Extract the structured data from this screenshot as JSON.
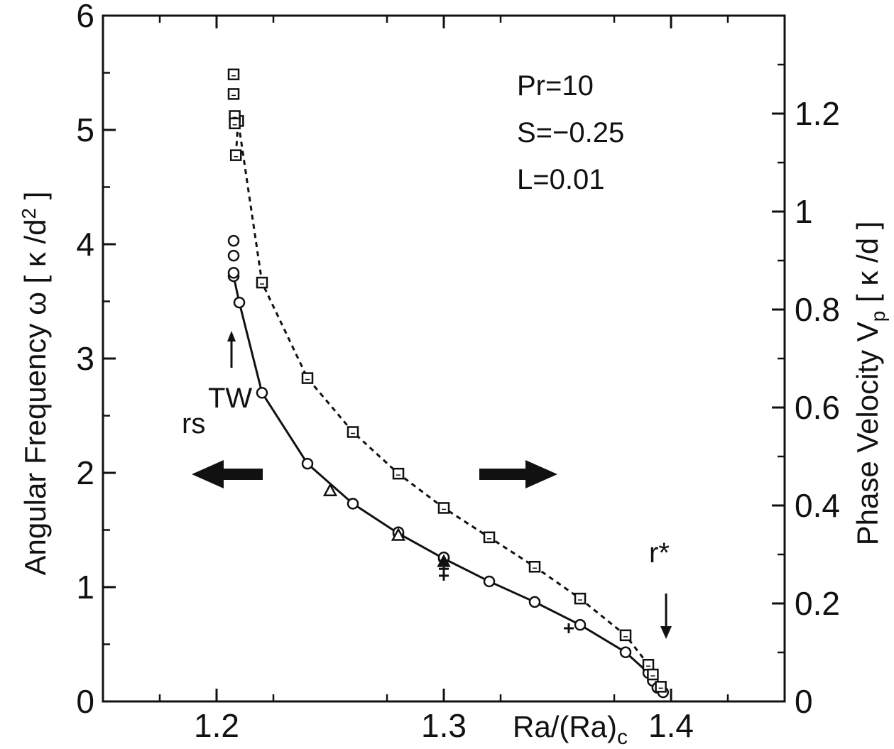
{
  "chart_data": {
    "type": "line",
    "xlabel": "Ra/(Ra)c",
    "ylabel": "Angular Frequency ω [ κ/d² ]",
    "ylabel_right": "Phase Velocity Vp [ κ/d ]",
    "xlim": [
      1.15,
      1.45
    ],
    "ylim": [
      0,
      6
    ],
    "ylim_right": [
      0,
      1.4
    ],
    "x_ticks": [
      "1.2",
      "1.3",
      "1.4"
    ],
    "y_ticks": [
      "0",
      "1",
      "2",
      "3",
      "4",
      "5",
      "6"
    ],
    "y_right_ticks": [
      "0",
      "0.2",
      "0.4",
      "0.6",
      "0.8",
      "1",
      "1.2"
    ],
    "grid": false,
    "annotations": {
      "params": [
        "Pr=10",
        "S=−0.25",
        "L=0.01"
      ],
      "rs_label": "rs",
      "rs_superscript": "TW",
      "rstar_label": "r*"
    },
    "series": [
      {
        "axis": "left",
        "style": "solid",
        "marker": "circle",
        "x": [
          1.2075,
          1.21,
          1.22,
          1.24,
          1.26,
          1.28,
          1.3,
          1.32,
          1.34,
          1.36,
          1.38,
          1.39,
          1.392,
          1.394,
          1.3965
        ],
        "y": [
          3.72,
          3.49,
          2.7,
          2.08,
          1.73,
          1.47,
          1.25,
          1.05,
          0.87,
          0.67,
          0.43,
          0.25,
          0.18,
          0.12,
          0.08
        ]
      },
      {
        "axis": "left",
        "style": "points",
        "marker": "circle",
        "x": [
          1.2075,
          1.2075,
          1.2075,
          1.28,
          1.3
        ],
        "y": [
          4.03,
          3.9,
          3.75,
          1.48,
          1.26
        ]
      },
      {
        "axis": "right",
        "style": "dashed",
        "marker": "square",
        "x": [
          1.2085,
          1.2095,
          1.22,
          1.24,
          1.26,
          1.28,
          1.3,
          1.32,
          1.34,
          1.36,
          1.38,
          1.39,
          1.392,
          1.3955
        ],
        "y": [
          1.115,
          1.185,
          0.855,
          0.66,
          0.55,
          0.465,
          0.395,
          0.335,
          0.275,
          0.21,
          0.135,
          0.075,
          0.055,
          0.03
        ]
      },
      {
        "axis": "right",
        "style": "points",
        "marker": "square",
        "x": [
          1.2075,
          1.2075,
          1.208,
          1.208
        ],
        "y": [
          1.28,
          1.24,
          1.195,
          1.18
        ]
      },
      {
        "axis": "left",
        "style": "points",
        "marker": "triangle",
        "x": [
          1.25,
          1.28
        ],
        "y": [
          1.84,
          1.45
        ]
      },
      {
        "axis": "left",
        "style": "points",
        "marker": "filled-triangle",
        "x": [
          1.3
        ],
        "y": [
          1.22
        ]
      },
      {
        "axis": "left",
        "style": "points",
        "marker": "plus",
        "x": [
          1.3,
          1.3,
          1.355
        ],
        "y": [
          1.16,
          1.1,
          0.64
        ]
      }
    ]
  }
}
